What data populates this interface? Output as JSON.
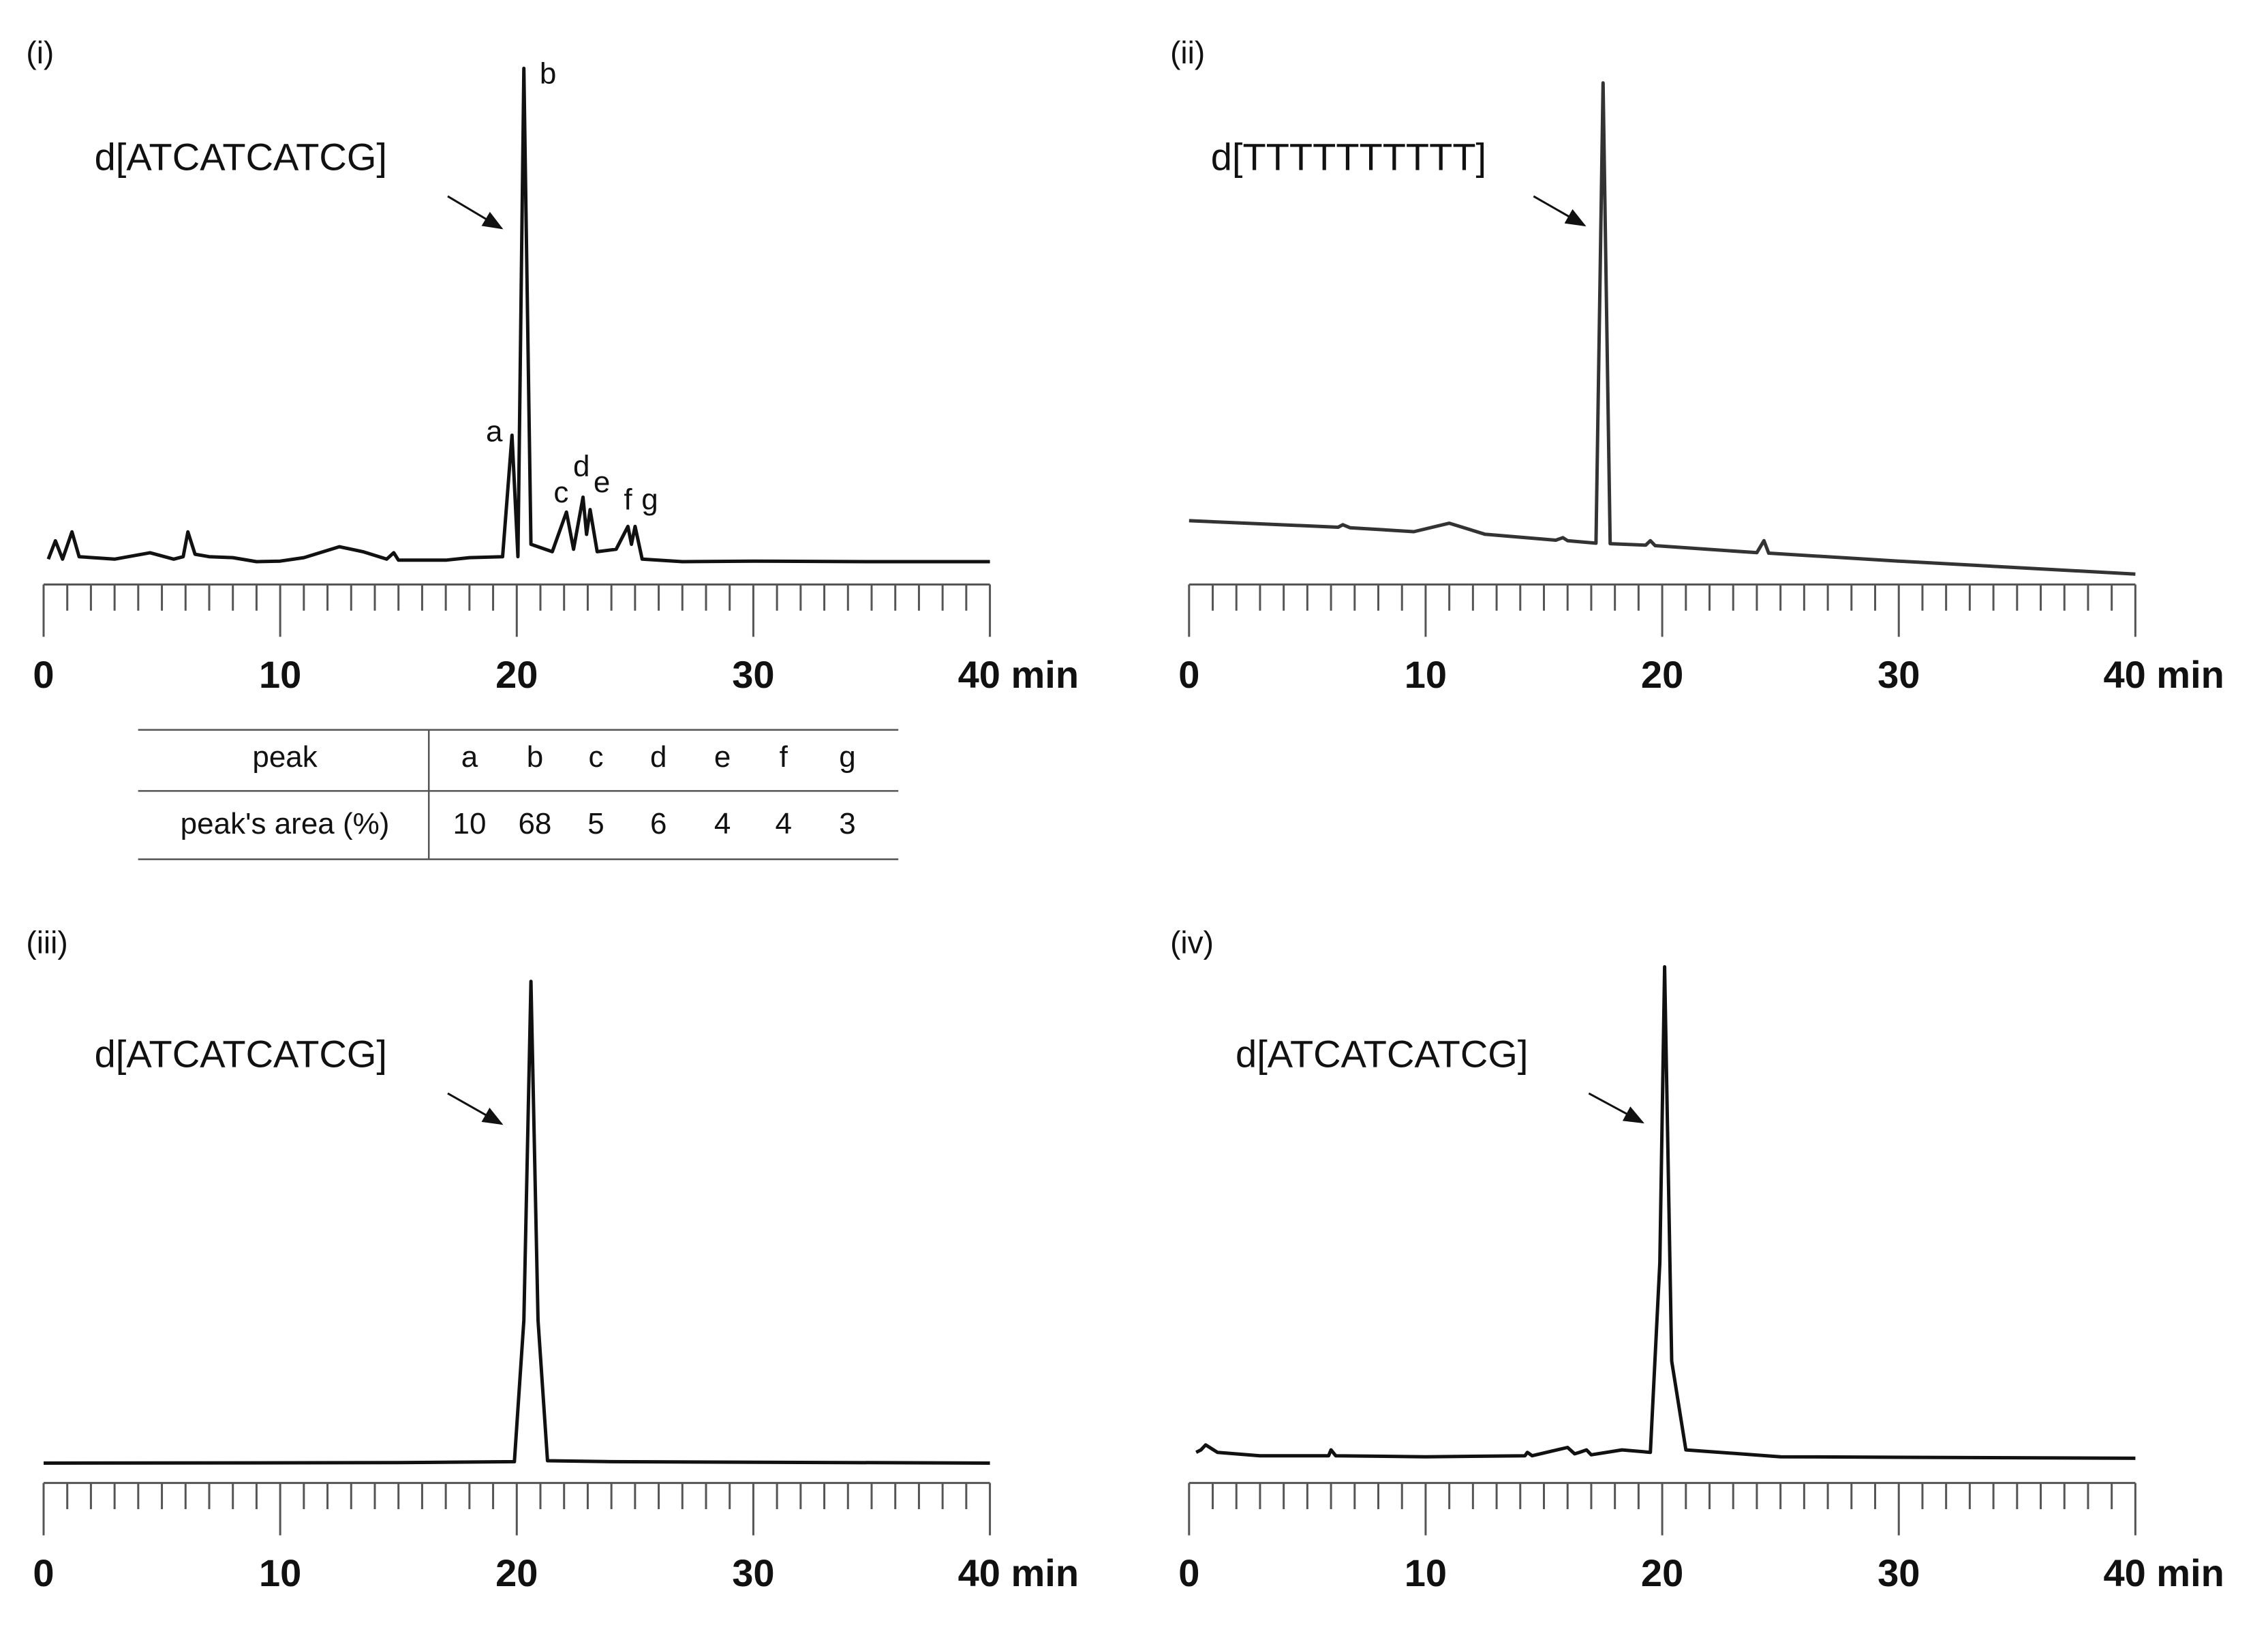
{
  "chart_data": [
    {
      "type": "line",
      "panel": "(i)",
      "annotation": "d[ATCATCATCG]",
      "peak_labels": [
        "a",
        "b",
        "c",
        "d",
        "e",
        "f",
        "g"
      ],
      "x": [
        0.2,
        0.5,
        0.8,
        1.2,
        1.5,
        3,
        4.5,
        5.5,
        5.9,
        6.1,
        6.4,
        7,
        8,
        9,
        10,
        11,
        12.5,
        13.5,
        14.5,
        14.8,
        15,
        17,
        18,
        19.4,
        19.8,
        20.05,
        20.3,
        20.6,
        21.5,
        22.1,
        22.4,
        22.8,
        22.95,
        23.1,
        23.4,
        24.2,
        24.7,
        24.85,
        25,
        25.3,
        27,
        30,
        35,
        40
      ],
      "values": [
        1,
        4.7,
        1,
        6.5,
        1.5,
        1,
        2.3,
        1,
        1.5,
        6.5,
        2,
        1.5,
        1.3,
        0.5,
        0.6,
        1.3,
        3.5,
        2.5,
        1,
        2.3,
        0.8,
        0.8,
        1.3,
        1.5,
        26,
        1.5,
        100,
        4,
        2.5,
        10.5,
        3,
        13.5,
        6,
        11,
        2.5,
        3,
        7.6,
        4,
        7.6,
        1,
        0.5,
        0.6,
        0.5,
        0.5
      ],
      "color": "#111111",
      "xlim": [
        0,
        40
      ],
      "ylim": [
        0,
        100
      ],
      "xticks": [
        0,
        10,
        20,
        30,
        {
          "value": 40,
          "label": "40 min"
        }
      ],
      "xminorticks": [
        1,
        2,
        3,
        4,
        5,
        6,
        7,
        8,
        9,
        11,
        12,
        13,
        14,
        15,
        16,
        17,
        18,
        19,
        21,
        22,
        23,
        24,
        25,
        26,
        27,
        28,
        29,
        31,
        32,
        33,
        34,
        35,
        36,
        37,
        38,
        39
      ]
    },
    {
      "type": "line",
      "panel": "(ii)",
      "annotation": "d[TTTTTTTTTT]",
      "x": [
        0,
        6.3,
        6.5,
        6.8,
        9.5,
        11,
        12.5,
        15.5,
        15.8,
        16,
        17.2,
        17.5,
        17.8,
        19.3,
        19.5,
        19.7,
        24,
        24.3,
        24.5,
        30,
        40
      ],
      "values": [
        12.2,
        10.9,
        11.4,
        10.8,
        10,
        11.7,
        9.5,
        8.3,
        8.8,
        8.2,
        7.7,
        100,
        7.6,
        7.3,
        8.2,
        7.2,
        5.8,
        8.2,
        5.7,
        4.1,
        1.5
      ],
      "color": "#333333",
      "xlim": [
        0,
        40
      ],
      "ylim": [
        0,
        100
      ],
      "xticks": [
        0,
        10,
        20,
        30,
        {
          "value": 40,
          "label": "40 min"
        }
      ],
      "xminorticks": [
        1,
        2,
        3,
        4,
        5,
        6,
        7,
        8,
        9,
        11,
        12,
        13,
        14,
        15,
        16,
        17,
        18,
        19,
        21,
        22,
        23,
        24,
        25,
        26,
        27,
        28,
        29,
        31,
        32,
        33,
        34,
        35,
        36,
        37,
        38,
        39
      ]
    },
    {
      "type": "line",
      "panel": "(iii)",
      "annotation": "d[ATCATCATCG]",
      "x": [
        0,
        15,
        19.9,
        20.3,
        20.6,
        20.9,
        21.3,
        24,
        40
      ],
      "values": [
        0.5,
        0.6,
        0.8,
        30,
        100,
        30,
        1,
        0.8,
        0.5
      ],
      "color": "#111111",
      "xlim": [
        0,
        40
      ],
      "ylim": [
        0,
        100
      ],
      "xticks": [
        0,
        10,
        20,
        30,
        {
          "value": 40,
          "label": "40 min"
        }
      ],
      "xminorticks": [
        1,
        2,
        3,
        4,
        5,
        6,
        7,
        8,
        9,
        11,
        12,
        13,
        14,
        15,
        16,
        17,
        18,
        19,
        21,
        22,
        23,
        24,
        25,
        26,
        27,
        28,
        29,
        31,
        32,
        33,
        34,
        35,
        36,
        37,
        38,
        39
      ]
    },
    {
      "type": "line",
      "panel": "(iv)",
      "annotation": "d[ATCATCATCG]",
      "x": [
        0.3,
        0.5,
        0.7,
        1.2,
        3,
        5.9,
        6,
        6.2,
        10,
        14.2,
        14.3,
        14.5,
        16,
        16.3,
        16.5,
        16.8,
        17,
        18.3,
        19.5,
        19.9,
        20.1,
        20.4,
        21,
        25,
        40
      ],
      "values": [
        1.5,
        2,
        3,
        1.5,
        0.8,
        0.8,
        2,
        0.8,
        0.6,
        0.8,
        1.5,
        0.8,
        2.5,
        1.2,
        1.5,
        2,
        1,
        2,
        1.5,
        40,
        100,
        20,
        2,
        0.6,
        0.3
      ],
      "color": "#111111",
      "xlim": [
        0,
        40
      ],
      "ylim": [
        0,
        100
      ],
      "xticks": [
        0,
        10,
        20,
        30,
        {
          "value": 40,
          "label": "40 min"
        }
      ],
      "xminorticks": [
        1,
        2,
        3,
        4,
        5,
        6,
        7,
        8,
        9,
        11,
        12,
        13,
        14,
        15,
        16,
        17,
        18,
        19,
        21,
        22,
        23,
        24,
        25,
        26,
        27,
        28,
        29,
        31,
        32,
        33,
        34,
        35,
        36,
        37,
        38,
        39
      ]
    }
  ],
  "table": {
    "header": [
      "peak",
      "a",
      "b",
      "c",
      "d",
      "e",
      "f",
      "g"
    ],
    "rows": [
      [
        "peak's area (%)",
        10,
        68,
        5,
        6,
        4,
        4,
        3
      ]
    ]
  }
}
